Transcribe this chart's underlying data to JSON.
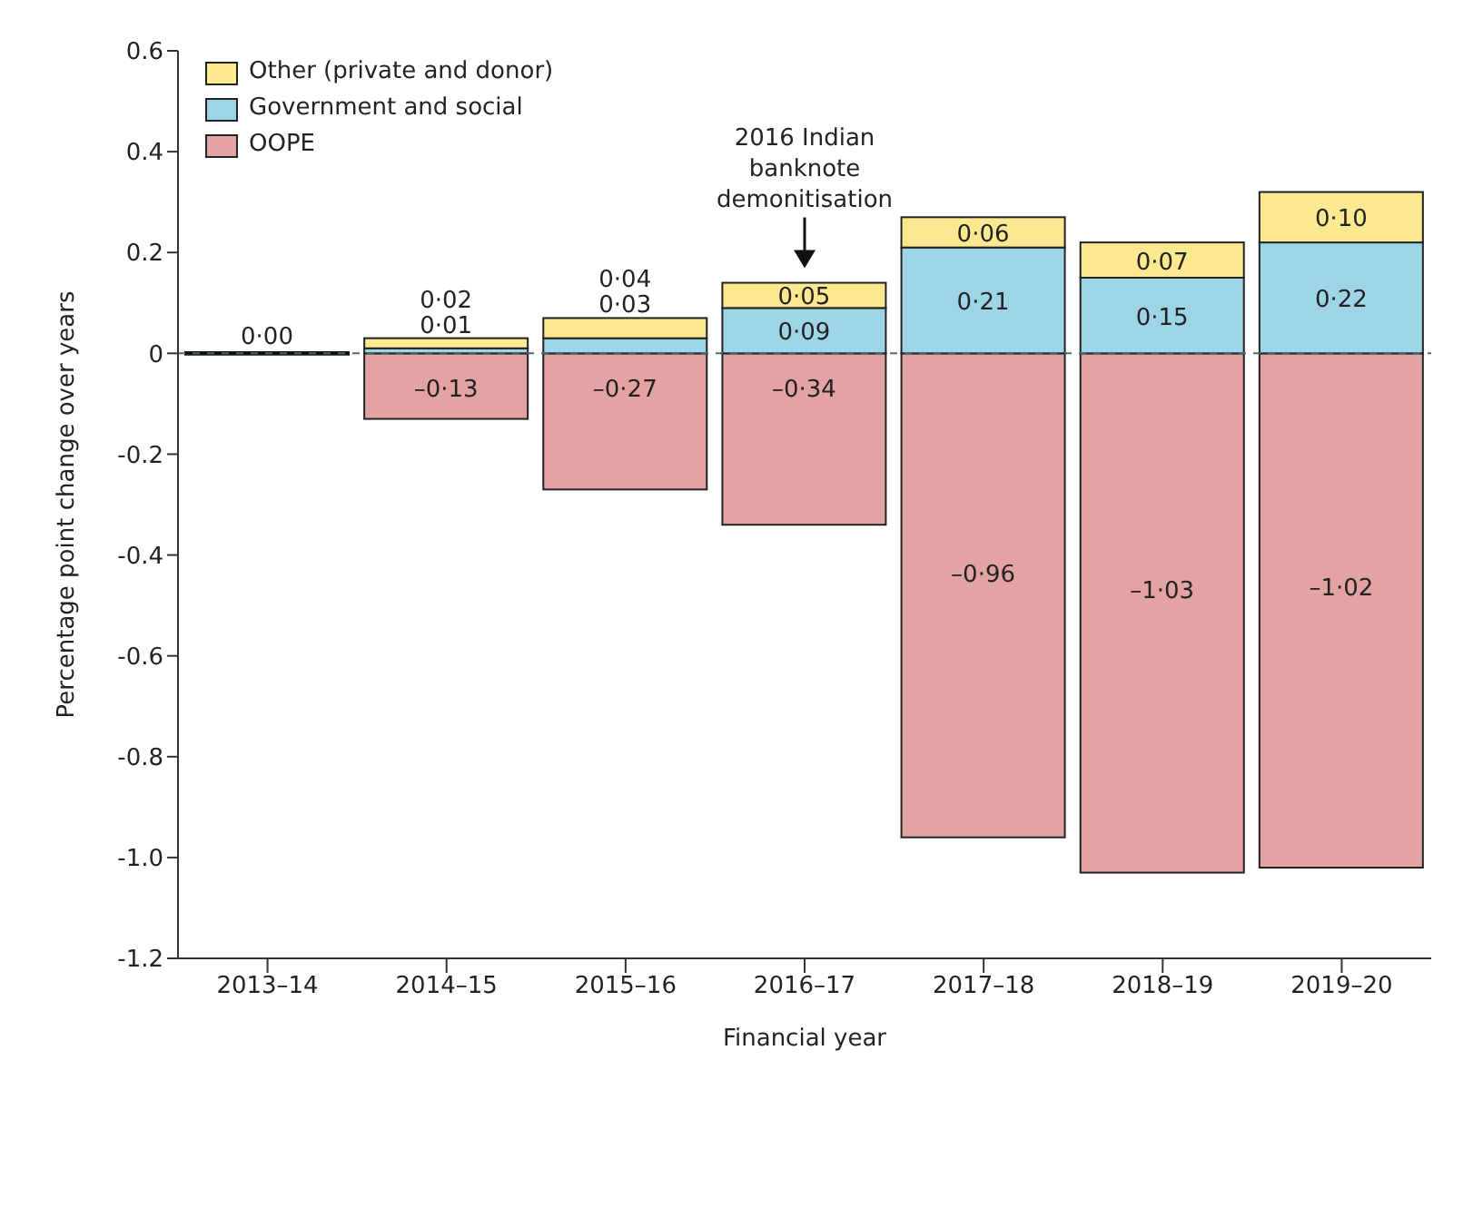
{
  "chart_data": {
    "type": "bar",
    "stacked": true,
    "xlabel": "Financial year",
    "ylabel": "Percentage point change over years",
    "categories": [
      "2013–14",
      "2014–15",
      "2015–16",
      "2016–17",
      "2017–18",
      "2018–19",
      "2019–20"
    ],
    "series": [
      {
        "name": "OOPE",
        "color": "#e2a3a2",
        "values": [
          0,
          -0.13,
          -0.27,
          -0.34,
          -0.96,
          -1.03,
          -1.02
        ],
        "value_labels": [
          "0·00",
          "–0·13",
          "–0·27",
          "–0·34",
          "–0·96",
          "–1·03",
          "–1·02"
        ]
      },
      {
        "name": "Government and social",
        "color": "#9dd5e6",
        "values": [
          0,
          0.01,
          0.03,
          0.09,
          0.21,
          0.15,
          0.22
        ],
        "value_labels": [
          null,
          "0·01",
          "0·03",
          "0·09",
          "0·21",
          "0·15",
          "0·22"
        ]
      },
      {
        "name": "Other (private and donor)",
        "color": "#fce98f",
        "values": [
          0,
          0.02,
          0.04,
          0.05,
          0.06,
          0.07,
          0.1
        ],
        "value_labels": [
          null,
          "0·02",
          "0·04",
          "0·05",
          "0·06",
          "0·07",
          "0·10"
        ]
      }
    ],
    "ylim": [
      -1.2,
      0.6
    ],
    "yticks": [
      -1.2,
      {
        "value": -1,
        "label": "-1.0"
      },
      -0.8,
      -0.6,
      -0.4,
      -0.2,
      0,
      0.2,
      0.4,
      0.6
    ],
    "ref_lines": [
      {
        "axis": "y",
        "value": 0,
        "color": "#4a6a78",
        "line_style": "dashed"
      }
    ],
    "annotations": [
      {
        "text": "2016 Indian banknote demonitisation",
        "x": "2016–17",
        "y": 0.14
      }
    ],
    "legend": "top left"
  }
}
